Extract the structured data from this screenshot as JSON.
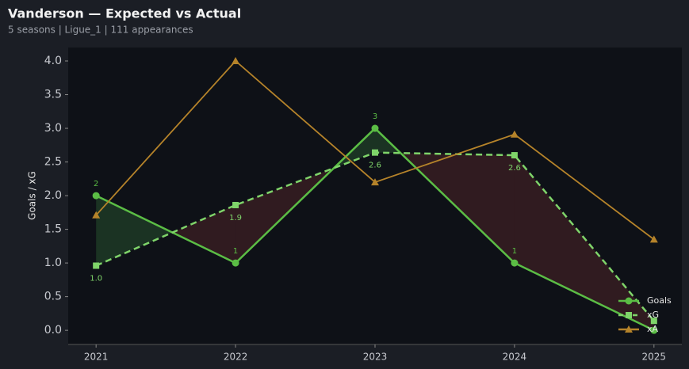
{
  "chart_data": {
    "type": "line",
    "title": "Vanderson — Expected vs Actual",
    "subtitle": "5 seasons | Ligue_1 | 111 appearances",
    "y_label": "Goals / xG",
    "x": [
      2021,
      2022,
      2023,
      2024,
      2025
    ],
    "xlim": [
      2020.8,
      2025.2
    ],
    "xticks": [
      2021,
      2022,
      2023,
      2024,
      2025
    ],
    "ylim": [
      -0.21,
      4.2
    ],
    "yticks": [
      {
        "value": 0,
        "label": "0.0"
      },
      {
        "value": 0.5,
        "label": "0.5"
      },
      {
        "value": 1,
        "label": "1.0"
      },
      {
        "value": 1.5,
        "label": "1.5"
      },
      {
        "value": 2,
        "label": "2.0"
      },
      {
        "value": 2.5,
        "label": "2.5"
      },
      {
        "value": 3,
        "label": "3.0"
      },
      {
        "value": 3.5,
        "label": "3.5"
      },
      {
        "value": 4,
        "label": "4.0"
      }
    ],
    "legend": "lower right",
    "series": [
      {
        "name": "Goals",
        "color": "#5bbd45",
        "marker": "circle",
        "dash": false,
        "values": [
          2,
          1,
          3,
          1,
          0
        ],
        "value_labels": [
          "2",
          "1",
          "3",
          "1",
          null
        ]
      },
      {
        "name": "xG",
        "color": "#7fd46a",
        "marker": "square",
        "dash": true,
        "values": [
          0.96,
          1.86,
          2.64,
          2.6,
          0.14
        ],
        "value_labels": [
          "1.0",
          "1.9",
          "2.6",
          "2.6",
          null
        ]
      },
      {
        "name": "xA",
        "color": "#b5832a",
        "marker": "triangle",
        "dash": false,
        "values": [
          1.71,
          4.0,
          2.2,
          2.91,
          1.35
        ]
      }
    ]
  }
}
